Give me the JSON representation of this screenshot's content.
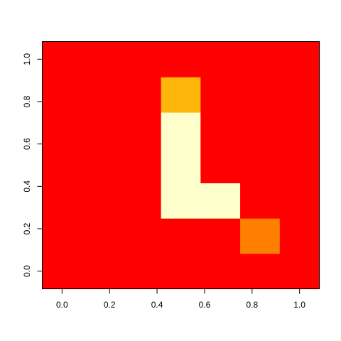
{
  "chart_data": {
    "type": "heatmap",
    "title": "",
    "xlabel": "",
    "ylabel": "",
    "xlim": [
      -0.0833,
      1.0833
    ],
    "ylim": [
      -0.0833,
      1.0833
    ],
    "x_centers": [
      0,
      0.1667,
      0.3333,
      0.5,
      0.6667,
      0.8333,
      1.0
    ],
    "y_centers": [
      0,
      0.1667,
      0.3333,
      0.5,
      0.6667,
      0.8333,
      1.0
    ],
    "x_ticks": [
      0.0,
      0.2,
      0.4,
      0.6,
      0.8,
      1.0
    ],
    "y_ticks": [
      0.0,
      0.2,
      0.4,
      0.6,
      0.8,
      1.0
    ],
    "x_tick_labels": [
      "0.0",
      "0.2",
      "0.4",
      "0.6",
      "0.8",
      "1.0"
    ],
    "y_tick_labels": [
      "0.0",
      "0.2",
      "0.4",
      "0.6",
      "0.8",
      "1.0"
    ],
    "palette": [
      "#ff0000",
      "#ff8000",
      "#ffb60a",
      "#ffffcc"
    ],
    "values_note_rows_bottom_to_top": "z[row][col], row index follows y_centers, col index follows x_centers",
    "z": [
      [
        0,
        0,
        0,
        0,
        0,
        0,
        0
      ],
      [
        0,
        0,
        0,
        0,
        0,
        1,
        0
      ],
      [
        0,
        0,
        0,
        3,
        3,
        0,
        0
      ],
      [
        0,
        0,
        0,
        3,
        0,
        0,
        0
      ],
      [
        0,
        0,
        0,
        3,
        0,
        0,
        0
      ],
      [
        0,
        0,
        0,
        2,
        0,
        0,
        0
      ],
      [
        0,
        0,
        0,
        0,
        0,
        0,
        0
      ]
    ],
    "grid": false,
    "legend": "none"
  }
}
